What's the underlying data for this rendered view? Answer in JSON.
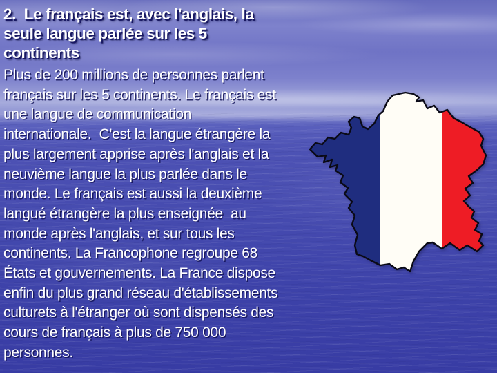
{
  "slide": {
    "title_lines": [
      "2.  Le français est, avec l'anglais, la",
      "seule langue parlée sur les 5",
      "continents"
    ],
    "body_lines": [
      "Plus de 200 millions de personnes parlent",
      "français sur les 5 continents. Le français est",
      "une langue de communication",
      "internationale.  C'est la langue étrangère la",
      "plus largement apprise après l'anglais et la",
      "neuvième langue la plus parlée dans le",
      "monde. Le français est aussi la deuxième",
      "langué étrangère la plus enseignée  au",
      "monde après l'anglais, et sur tous les",
      "continents. La Francophone regroupe 68",
      "États et gouvernements. La France dispose",
      "enfin du plus grand réseau d'établissements",
      "culturets à l'étranger où sont dispensés des",
      "cours de français à plus de 750 000",
      "personnes."
    ],
    "map": {
      "label": "france-map-with-flag-stripes",
      "flag_blue": "#1f2d7f",
      "flag_white": "#fffdf6",
      "flag_red": "#ee1c25",
      "outline": "#0a0a16"
    },
    "colors": {
      "sky_top": "#666bbd",
      "horizon": "#a6abdc",
      "water": "#3d42a9",
      "text": "#ffffff",
      "text_shadow": "#181862"
    }
  }
}
